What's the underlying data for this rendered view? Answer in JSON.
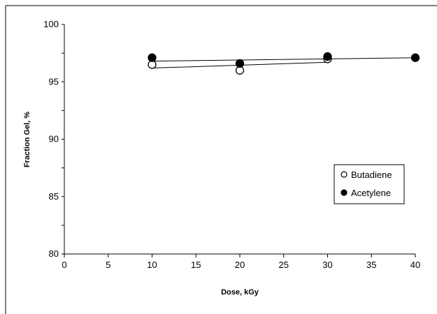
{
  "chart_data": {
    "type": "scatter",
    "title": "",
    "xlabel": "Dose, kGy",
    "ylabel": "Fraction Gel, %",
    "xlim": [
      0,
      40
    ],
    "ylim": [
      80,
      100
    ],
    "x_ticks": [
      0,
      5,
      10,
      15,
      20,
      25,
      30,
      35,
      40
    ],
    "y_ticks": [
      80,
      85,
      90,
      95,
      100
    ],
    "grid": false,
    "legend_position": "right",
    "series": [
      {
        "name": "Butadiene",
        "marker": "open-circle",
        "x": [
          10,
          20,
          30
        ],
        "y": [
          96.5,
          96.0,
          97.0
        ],
        "trendline": {
          "x": [
            10,
            30
          ],
          "y": [
            96.2,
            96.7
          ]
        }
      },
      {
        "name": "Acetylene",
        "marker": "filled-circle",
        "x": [
          10,
          20,
          30,
          40
        ],
        "y": [
          97.1,
          96.6,
          97.2,
          97.1
        ],
        "trendline": {
          "x": [
            10,
            40
          ],
          "y": [
            96.8,
            97.1
          ]
        }
      }
    ],
    "colors": {
      "marker": "#000000",
      "line": "#000000",
      "background": "#ffffff"
    }
  }
}
